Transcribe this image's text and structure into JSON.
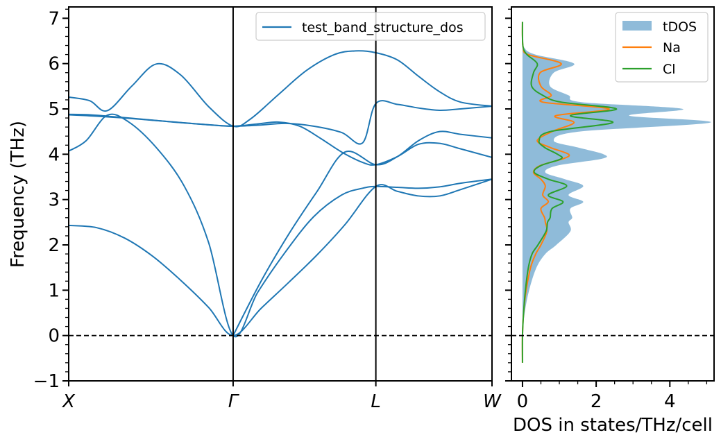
{
  "chart_data": [
    {
      "type": "line",
      "title": "",
      "xlabel": "",
      "ylabel": "Frequency (THz)",
      "ylim": [
        -1,
        7.25
      ],
      "yticks": [
        -1,
        0,
        1,
        2,
        3,
        4,
        5,
        6,
        7
      ],
      "xlim": [
        0,
        1.21
      ],
      "high_symmetry_points": [
        {
          "label": "X",
          "x": 0
        },
        {
          "label": "Γ",
          "x": 0.47
        },
        {
          "label": "L",
          "x": 0.878
        },
        {
          "label": "W",
          "x": 1.21
        }
      ],
      "zero_line": 0,
      "grid": false,
      "legend": {
        "placement": "top-right",
        "entries": [
          "test_band_structure_dos"
        ]
      },
      "color": "#1f77b4",
      "series": [
        {
          "name": "test_band_structure_dos",
          "x": [
            0,
            0.06,
            0.11,
            0.18,
            0.25,
            0.32,
            0.4,
            0.47,
            0.52,
            0.6,
            0.68,
            0.76,
            0.82,
            0.878,
            0.94,
            1.0,
            1.06,
            1.12,
            1.21
          ],
          "y": [
            5.26,
            5.18,
            4.96,
            5.5,
            5.99,
            5.75,
            5.05,
            4.62,
            4.78,
            5.32,
            5.85,
            6.2,
            6.28,
            6.24,
            6.08,
            5.72,
            5.38,
            5.15,
            5.06
          ]
        },
        {
          "name": "",
          "x": [
            0,
            0.05,
            0.11,
            0.17,
            0.25,
            0.33,
            0.4,
            0.47,
            0.54,
            0.62,
            0.7,
            0.78,
            0.84,
            0.878,
            0.94,
            1.0,
            1.06,
            1.12,
            1.21
          ],
          "y": [
            4.07,
            4.3,
            4.86,
            4.72,
            4.15,
            3.3,
            2.05,
            0.0,
            0.95,
            1.85,
            2.62,
            3.1,
            3.25,
            3.29,
            3.27,
            3.25,
            3.28,
            3.36,
            3.45
          ]
        },
        {
          "name": "",
          "x": [
            0,
            0.06,
            0.11,
            0.2,
            0.3,
            0.4,
            0.47,
            0.54,
            0.6,
            0.66,
            0.72,
            0.78,
            0.84,
            0.878,
            0.94,
            1.0,
            1.06,
            1.12,
            1.21
          ],
          "y": [
            4.88,
            4.87,
            4.84,
            4.78,
            4.71,
            4.65,
            4.62,
            4.67,
            4.71,
            4.62,
            4.35,
            4.05,
            3.82,
            3.77,
            3.95,
            4.22,
            4.24,
            4.12,
            3.93
          ]
        },
        {
          "name": "",
          "x": [
            0,
            0.08,
            0.16,
            0.24,
            0.32,
            0.4,
            0.47,
            0.55,
            0.63,
            0.71,
            0.79,
            0.878,
            0.94,
            1.0,
            1.06,
            1.12,
            1.21
          ],
          "y": [
            2.43,
            2.38,
            2.15,
            1.75,
            1.22,
            0.62,
            0.0,
            0.6,
            1.18,
            1.78,
            2.45,
            3.29,
            3.18,
            3.08,
            3.08,
            3.22,
            3.45
          ]
        },
        {
          "name": "",
          "x": [
            0,
            0.08,
            0.16,
            0.24,
            0.32,
            0.4,
            0.47,
            0.54,
            0.62,
            0.7,
            0.78,
            0.84,
            0.878,
            0.94,
            1.0,
            1.06,
            1.12,
            1.21
          ],
          "y": [
            4.87,
            4.84,
            4.8,
            4.75,
            4.7,
            4.65,
            4.62,
            4.64,
            4.68,
            4.62,
            4.48,
            4.25,
            5.12,
            5.1,
            5.02,
            4.97,
            5.0,
            5.06
          ]
        },
        {
          "name": "",
          "x": [
            0.47,
            0.55,
            0.63,
            0.71,
            0.79,
            0.878,
            0.94,
            1.0,
            1.06,
            1.12,
            1.21
          ],
          "y": [
            0.0,
            1.2,
            2.25,
            3.18,
            4.05,
            3.77,
            3.95,
            4.3,
            4.5,
            4.44,
            4.36
          ]
        }
      ]
    },
    {
      "type": "area",
      "title": "",
      "xlabel": "DOS in states/THz/cell",
      "ylabel": "",
      "xlim": [
        -0.3,
        5.2
      ],
      "ylim": [
        -1,
        7.25
      ],
      "xticks": [
        0,
        2,
        4
      ],
      "zero_line": 0,
      "grid": false,
      "legend": {
        "placement": "top-right",
        "entries": [
          "tDOS",
          "Na",
          "Cl"
        ]
      },
      "series": [
        {
          "name": "tDOS",
          "color": "#1f77b4",
          "fill_alpha": 0.5,
          "y": [
            -0.6,
            0.0,
            0.5,
            1.0,
            1.5,
            1.8,
            2.0,
            2.3,
            2.5,
            2.6,
            2.8,
            2.95,
            3.1,
            3.3,
            3.45,
            3.6,
            3.75,
            3.9,
            4.0,
            4.15,
            4.3,
            4.5,
            4.7,
            4.85,
            5.0,
            5.15,
            5.3,
            5.5,
            5.8,
            6.0,
            6.2,
            6.35,
            6.6,
            6.92
          ],
          "x": [
            0.0,
            0.0,
            0.06,
            0.18,
            0.38,
            0.62,
            0.92,
            1.3,
            1.25,
            1.35,
            1.3,
            1.65,
            1.25,
            1.65,
            1.15,
            0.62,
            0.95,
            2.15,
            2.2,
            1.5,
            0.85,
            1.55,
            5.1,
            2.9,
            4.35,
            1.6,
            1.25,
            0.75,
            0.85,
            1.4,
            0.35,
            0.05,
            0.0,
            0.0
          ]
        },
        {
          "name": "Na",
          "color": "#ff7f0e",
          "y": [
            -0.6,
            0.0,
            0.5,
            1.0,
            1.5,
            1.8,
            2.0,
            2.3,
            2.5,
            2.6,
            2.8,
            2.95,
            3.1,
            3.3,
            3.45,
            3.6,
            3.75,
            3.9,
            4.0,
            4.15,
            4.3,
            4.5,
            4.7,
            4.85,
            5.0,
            5.15,
            5.3,
            5.5,
            5.8,
            6.0,
            6.2,
            6.35,
            6.6,
            6.92
          ],
          "x": [
            0.0,
            0.0,
            0.03,
            0.1,
            0.22,
            0.36,
            0.5,
            0.66,
            0.62,
            0.6,
            0.5,
            0.7,
            0.55,
            0.62,
            0.5,
            0.3,
            0.48,
            1.1,
            1.25,
            0.75,
            0.4,
            0.8,
            1.4,
            0.9,
            2.35,
            0.55,
            0.78,
            0.5,
            0.48,
            1.05,
            0.15,
            0.02,
            0.0,
            0.0
          ]
        },
        {
          "name": "Cl",
          "color": "#2ca02c",
          "y": [
            -0.6,
            0.0,
            0.5,
            1.0,
            1.5,
            1.8,
            2.0,
            2.3,
            2.5,
            2.6,
            2.8,
            2.95,
            3.1,
            3.3,
            3.45,
            3.6,
            3.75,
            3.9,
            4.0,
            4.15,
            4.3,
            4.5,
            4.7,
            4.85,
            5.0,
            5.15,
            5.3,
            5.5,
            5.8,
            6.0,
            6.2,
            6.35,
            6.6,
            6.92
          ],
          "x": [
            0.0,
            0.0,
            0.03,
            0.08,
            0.16,
            0.26,
            0.42,
            0.64,
            0.68,
            0.75,
            0.8,
            1.1,
            0.7,
            1.2,
            0.7,
            0.32,
            0.5,
            1.05,
            0.95,
            0.6,
            0.45,
            0.75,
            2.45,
            1.3,
            2.55,
            1.05,
            0.55,
            0.25,
            0.3,
            0.4,
            0.12,
            0.02,
            0.0,
            0.0
          ]
        }
      ]
    }
  ]
}
